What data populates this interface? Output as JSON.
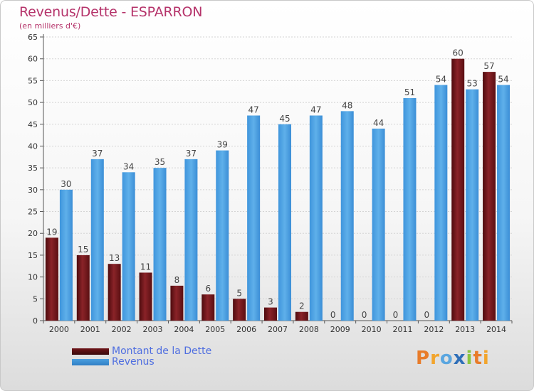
{
  "header": {
    "title": "Revenus/Dette - ESPARRON",
    "subtitle": "(en milliers d'€)"
  },
  "colors": {
    "debt": "#7a1a1f",
    "revenue": "#4a9fe0",
    "title": "#b5336a",
    "legend_text": "#4f6ee0"
  },
  "legend": {
    "items": [
      {
        "label": "Montant de la Dette",
        "color": "#6e1418"
      },
      {
        "label": "Revenus",
        "color": "#4a9fe0"
      }
    ]
  },
  "logo": {
    "letters": [
      {
        "ch": "P",
        "color": "#e87c2a"
      },
      {
        "ch": "r",
        "color": "#f2a52d"
      },
      {
        "ch": "o",
        "color": "#5aa6e0"
      },
      {
        "ch": "x",
        "color": "#2f6fb8"
      },
      {
        "ch": "i",
        "color": "#8cc63f"
      },
      {
        "ch": "t",
        "color": "#e87c2a"
      },
      {
        "ch": "i",
        "color": "#f2a52d"
      }
    ]
  },
  "chart_data": {
    "type": "bar",
    "title": "Revenus/Dette - ESPARRON",
    "subtitle": "(en milliers d'€)",
    "categories": [
      "2000",
      "2001",
      "2002",
      "2003",
      "2004",
      "2005",
      "2006",
      "2007",
      "2008",
      "2009",
      "2010",
      "2011",
      "2012",
      "2013",
      "2014"
    ],
    "series": [
      {
        "name": "Montant de la Dette",
        "values": [
          19,
          15,
          13,
          11,
          8,
          6,
          5,
          3,
          2,
          0,
          0,
          0,
          0,
          60,
          57
        ]
      },
      {
        "name": "Revenus",
        "values": [
          30,
          37,
          34,
          35,
          37,
          39,
          47,
          45,
          47,
          48,
          44,
          51,
          54,
          53,
          54
        ]
      }
    ],
    "ylim": [
      0,
      65
    ],
    "yticks": [
      0,
      5,
      10,
      15,
      20,
      25,
      30,
      35,
      40,
      45,
      50,
      55,
      60,
      65
    ],
    "grid": true,
    "legend_position": "bottom-left"
  }
}
